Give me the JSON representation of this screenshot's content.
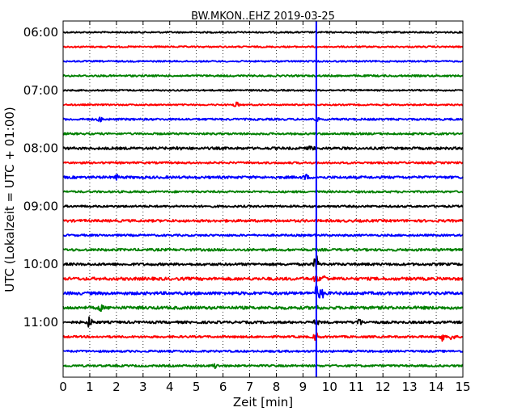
{
  "chart_data": {
    "type": "line",
    "title": "BW.MKON..EHZ 2019-03-25",
    "xlabel": "Zeit  [min]",
    "ylabel": "UTC (Lokalzeit = UTC + 01:00)",
    "xlim": [
      0,
      15
    ],
    "x_ticks": [
      "0",
      "1",
      "2",
      "3",
      "4",
      "5",
      "6",
      "7",
      "8",
      "9",
      "10",
      "11",
      "12",
      "13",
      "14",
      "15"
    ],
    "y_ticks": [
      "06:00",
      "07:00",
      "08:00",
      "09:00",
      "10:00",
      "11:00"
    ],
    "trace_interval_min": 15,
    "start_time": "06:00",
    "grid": "vertical dotted",
    "trace_colors": [
      "#000000",
      "#ff0000",
      "#0000ff",
      "#008000"
    ],
    "marker": {
      "x": 9.5,
      "color": "#0000ff"
    },
    "traces": [
      {
        "start": "06:00",
        "amplitude": 0.15,
        "bursts": []
      },
      {
        "start": "06:15",
        "amplitude": 0.15,
        "bursts": []
      },
      {
        "start": "06:30",
        "amplitude": 0.15,
        "bursts": []
      },
      {
        "start": "06:45",
        "amplitude": 0.18,
        "bursts": []
      },
      {
        "start": "07:00",
        "amplitude": 0.15,
        "bursts": []
      },
      {
        "start": "07:15",
        "amplitude": 0.15,
        "bursts": [
          {
            "x": 6.5,
            "amplitude": 0.5
          }
        ]
      },
      {
        "start": "07:30",
        "amplitude": 0.2,
        "bursts": [
          {
            "x": 1.4,
            "amplitude": 0.4
          },
          {
            "x": 9.5,
            "amplitude": 0.3
          }
        ]
      },
      {
        "start": "07:45",
        "amplitude": 0.2,
        "bursts": []
      },
      {
        "start": "08:00",
        "amplitude": 0.25,
        "bursts": [
          {
            "x": 4.3,
            "amplitude": 0.35
          },
          {
            "x": 9.3,
            "amplitude": 0.4
          }
        ]
      },
      {
        "start": "08:15",
        "amplitude": 0.2,
        "bursts": []
      },
      {
        "start": "08:30",
        "amplitude": 0.25,
        "bursts": [
          {
            "x": 2.0,
            "amplitude": 0.4
          },
          {
            "x": 9.1,
            "amplitude": 0.45
          }
        ]
      },
      {
        "start": "08:45",
        "amplitude": 0.2,
        "bursts": []
      },
      {
        "start": "09:00",
        "amplitude": 0.2,
        "bursts": []
      },
      {
        "start": "09:15",
        "amplitude": 0.25,
        "bursts": []
      },
      {
        "start": "09:30",
        "amplitude": 0.2,
        "bursts": []
      },
      {
        "start": "09:45",
        "amplitude": 0.25,
        "bursts": []
      },
      {
        "start": "10:00",
        "amplitude": 0.25,
        "bursts": [
          {
            "x": 9.5,
            "amplitude": 1.6
          }
        ]
      },
      {
        "start": "10:15",
        "amplitude": 0.3,
        "bursts": [
          {
            "x": 9.5,
            "amplitude": 0.6
          },
          {
            "x": 9.8,
            "amplitude": 0.5
          }
        ]
      },
      {
        "start": "10:30",
        "amplitude": 0.3,
        "bursts": [
          {
            "x": 9.5,
            "amplitude": 1.4
          },
          {
            "x": 9.7,
            "amplitude": 1.0
          }
        ]
      },
      {
        "start": "10:45",
        "amplitude": 0.3,
        "bursts": [
          {
            "x": 1.4,
            "amplitude": 0.5
          },
          {
            "x": 9.5,
            "amplitude": 0.4
          }
        ]
      },
      {
        "start": "11:00",
        "amplitude": 0.25,
        "bursts": [
          {
            "x": 1.0,
            "amplitude": 1.0
          },
          {
            "x": 11.1,
            "amplitude": 0.7
          },
          {
            "x": 9.5,
            "amplitude": 0.4
          }
        ]
      },
      {
        "start": "11:15",
        "amplitude": 0.2,
        "bursts": [
          {
            "x": 9.5,
            "amplitude": 0.8
          },
          {
            "x": 14.2,
            "amplitude": 0.9
          },
          {
            "x": 14.6,
            "amplitude": 0.8
          }
        ]
      },
      {
        "start": "11:30",
        "amplitude": 0.2,
        "bursts": []
      },
      {
        "start": "11:45",
        "amplitude": 0.2,
        "bursts": [
          {
            "x": 5.7,
            "amplitude": 0.5
          }
        ]
      }
    ]
  }
}
